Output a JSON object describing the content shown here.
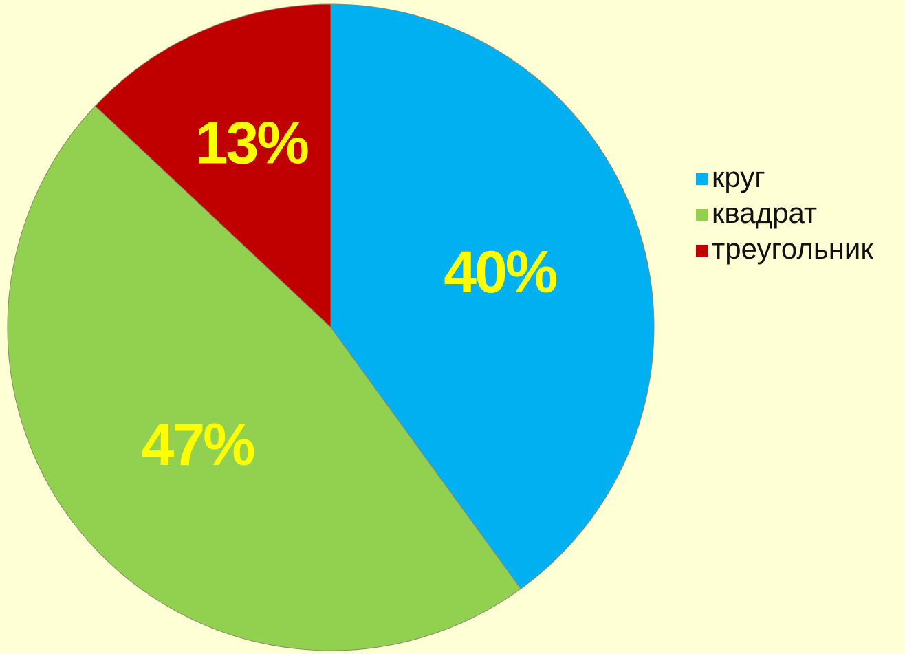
{
  "chart_data": {
    "type": "pie",
    "categories": [
      "круг",
      "квадрат",
      "треугольник"
    ],
    "values": [
      40,
      47,
      13
    ],
    "labels": [
      "40%",
      "47%",
      "13%"
    ],
    "colors": [
      "#00B0F0",
      "#92D050",
      "#C00000"
    ],
    "start_angle_deg": 0,
    "direction": "clockwise",
    "legend": "right",
    "label_color": "#FFFF00",
    "background_color": "#FFFFD5"
  }
}
